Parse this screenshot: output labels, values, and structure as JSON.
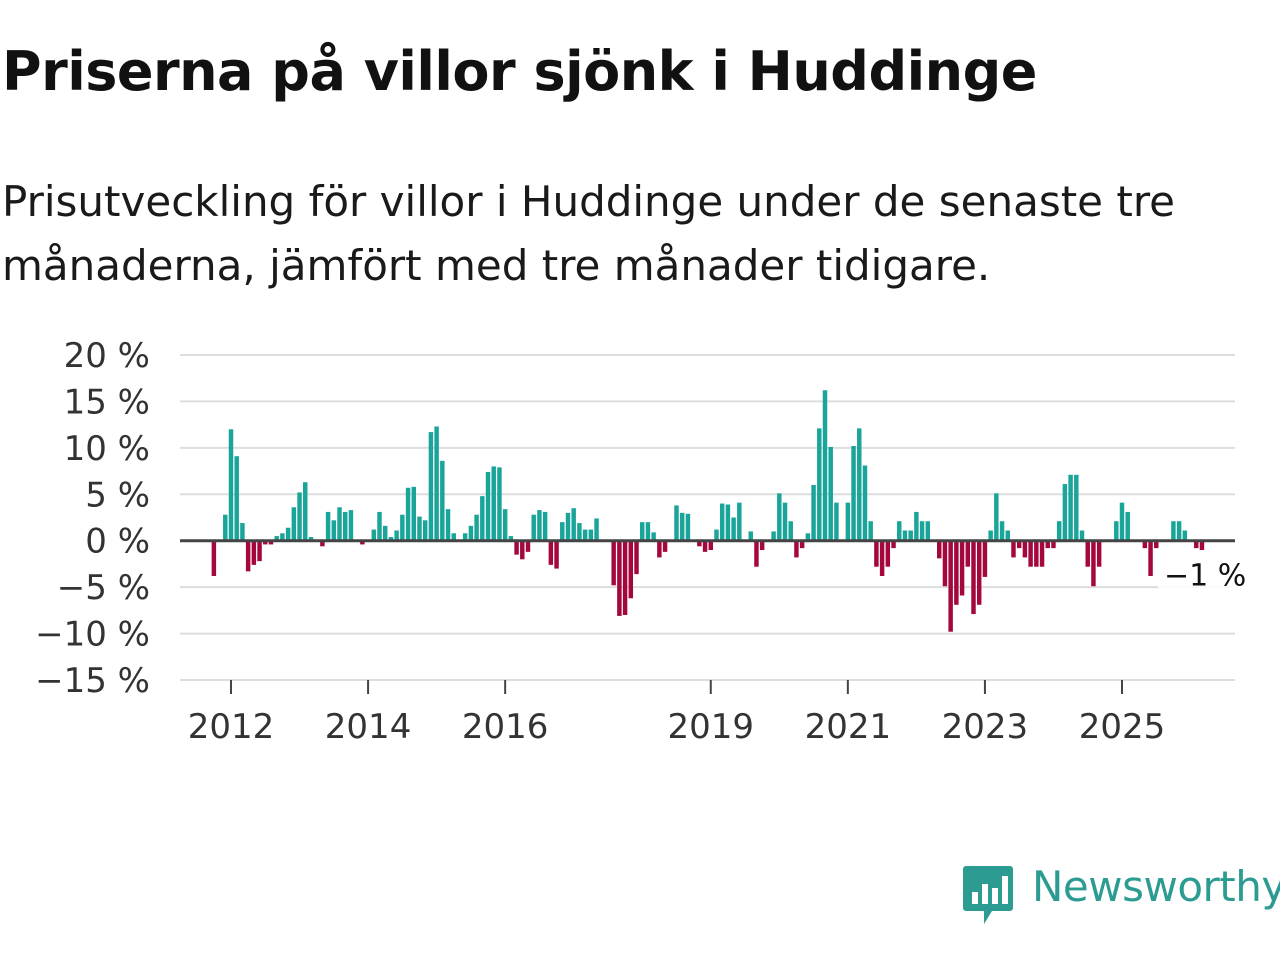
{
  "title": "Priserna på villor sjönk i Huddinge",
  "subtitle": "Prisutveckling för villor i Huddinge under de senaste tre månaderna, jämfört med tre månader tidigare.",
  "brand": {
    "name": "Newsworthy",
    "color": "#2c9c92"
  },
  "colors": {
    "positive": "#1aa59a",
    "negative": "#a3073e",
    "grid": "#dddddd",
    "zero": "#444444"
  },
  "chart_data": {
    "type": "bar",
    "title": "Priserna på villor sjönk i Huddinge",
    "xlabel": "",
    "ylabel": "",
    "ylim": [
      -15,
      20
    ],
    "y_ticks": [
      20,
      15,
      10,
      5,
      0,
      -5,
      -10,
      -15
    ],
    "y_tick_labels": [
      "20 %",
      "15 %",
      "10 %",
      "5 %",
      "0 %",
      "−5 %",
      "−10 %",
      "−15 %"
    ],
    "x_ticks": [
      2012,
      2014,
      2016,
      2019,
      2021,
      2023,
      2025
    ],
    "x_tick_labels": [
      "2012",
      "2014",
      "2016",
      "2019",
      "2021",
      "2023",
      "2025"
    ],
    "x_start": 2011.75,
    "x_step": 0.0833333,
    "last_label": "−1 %",
    "values": [
      -3.8,
      0,
      2.8,
      12,
      9.1,
      1.9,
      -3.3,
      -2.6,
      -2.2,
      -0.4,
      -0.4,
      0.5,
      0.8,
      1.4,
      3.6,
      5.2,
      6.3,
      0.4,
      0,
      -0.6,
      3.1,
      2.2,
      3.6,
      3.1,
      3.3,
      0,
      -0.4,
      0,
      1.2,
      3.1,
      1.6,
      0.4,
      1.1,
      2.8,
      5.7,
      5.8,
      2.6,
      2.2,
      11.7,
      12.3,
      8.6,
      3.4,
      0.8,
      0,
      0.8,
      1.6,
      2.8,
      4.8,
      7.4,
      8.0,
      7.9,
      3.4,
      0.5,
      -1.5,
      -2.0,
      -1.2,
      2.8,
      3.3,
      3.1,
      -2.6,
      -3.0,
      2.0,
      3.0,
      3.5,
      1.9,
      1.2,
      1.2,
      2.4,
      0,
      0,
      -4.8,
      -8.1,
      -8.0,
      -6.2,
      -3.6,
      2.0,
      2.0,
      0.9,
      -1.8,
      -1.2,
      0,
      3.8,
      3.0,
      2.9,
      0,
      -0.6,
      -1.2,
      -1.0,
      1.2,
      4.0,
      3.9,
      2.5,
      4.1,
      0,
      1.0,
      -2.8,
      -1.0,
      0,
      1.0,
      5.1,
      4.1,
      2.1,
      -1.8,
      -0.8,
      0.8,
      6.0,
      12.1,
      16.2,
      10.1,
      4.1,
      0,
      4.1,
      10.2,
      12.1,
      8.1,
      2.1,
      -2.8,
      -3.8,
      -2.8,
      -0.8,
      2.1,
      1.1,
      1.1,
      3.1,
      2.1,
      2.1,
      0,
      -1.9,
      -4.9,
      -9.8,
      -6.9,
      -5.9,
      -2.8,
      -7.9,
      -6.9,
      -3.9,
      1.1,
      5.1,
      2.1,
      1.1,
      -1.8,
      -0.8,
      -1.8,
      -2.8,
      -2.8,
      -2.8,
      -0.8,
      -0.8,
      2.1,
      6.1,
      7.1,
      7.1,
      1.1,
      -2.8,
      -4.9,
      -2.8,
      0,
      0,
      2.1,
      4.1,
      3.1,
      0,
      0,
      -0.8,
      -3.8,
      -0.8,
      0,
      0,
      2.1,
      2.1,
      1.1,
      0,
      -0.8,
      -1.0
    ]
  }
}
